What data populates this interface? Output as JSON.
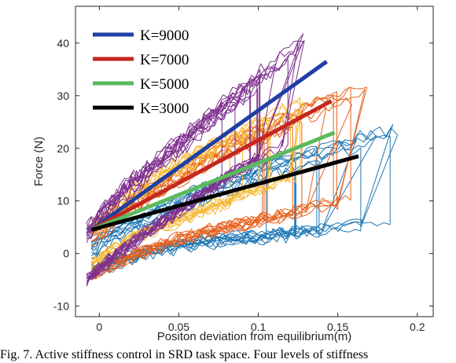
{
  "chart_data": {
    "type": "line",
    "xlabel": "Positon deviation from equilibrium(m)",
    "ylabel": "Force (N)",
    "xlim": [
      -0.015,
      0.21
    ],
    "ylim": [
      -12,
      47
    ],
    "xticks": [
      0,
      0.05,
      0.1,
      0.15,
      0.2
    ],
    "xtick_labels": [
      "0",
      "0.05",
      "0.1",
      "0.15",
      "0.2"
    ],
    "yticks": [
      -10,
      0,
      10,
      20,
      30,
      40
    ],
    "ytick_labels": [
      "-10",
      "0",
      "10",
      "20",
      "30",
      "40"
    ],
    "grid": false,
    "legend_position": "top-left",
    "fit_lines": [
      {
        "name": "K=9000",
        "color": "#1f3fa6",
        "x": [
          -0.005,
          0.143
        ],
        "y": [
          4.5,
          36.5
        ]
      },
      {
        "name": "K=7000",
        "color": "#c4281e",
        "x": [
          -0.005,
          0.146
        ],
        "y": [
          4.5,
          29.0
        ]
      },
      {
        "name": "K=5000",
        "color": "#5cba5c",
        "x": [
          -0.005,
          0.148
        ],
        "y": [
          4.5,
          23.0
        ]
      },
      {
        "name": "K=3000",
        "color": "#000000",
        "x": [
          -0.005,
          0.163
        ],
        "y": [
          4.5,
          18.5
        ]
      }
    ],
    "trial_groups": [
      {
        "color": "#1f77b4",
        "count": 12,
        "x_min": -0.005,
        "x_max": 0.195,
        "lower_y": [
          -3,
          0,
          2,
          3,
          4,
          5,
          6
        ],
        "upper_y": [
          1,
          6,
          11,
          15,
          18,
          21,
          23
        ],
        "jump_x": [
          0.14,
          0.165,
          0.19
        ]
      },
      {
        "color": "#e8601c",
        "count": 12,
        "x_min": -0.005,
        "x_max": 0.17,
        "lower_y": [
          -4,
          0,
          3,
          5,
          7,
          9,
          10
        ],
        "upper_y": [
          3,
          10,
          15,
          20,
          24,
          28,
          31
        ],
        "jump_x": [
          0.13,
          0.15,
          0.165
        ]
      },
      {
        "color": "#f5b833",
        "count": 10,
        "x_min": -0.005,
        "x_max": 0.15,
        "lower_y": [
          -2,
          3,
          6,
          9,
          12,
          15,
          17
        ],
        "upper_y": [
          4,
          11,
          16,
          20,
          24,
          28,
          32
        ],
        "jump_x": [
          0.12,
          0.135
        ]
      },
      {
        "color": "#7e2f8e",
        "count": 14,
        "x_min": -0.008,
        "x_max": 0.135,
        "lower_y": [
          -5,
          1,
          6,
          11,
          16,
          20,
          24
        ],
        "upper_y": [
          4,
          12,
          18,
          24,
          30,
          36,
          42
        ],
        "jump_x": [
          0.1,
          0.115,
          0.13
        ]
      }
    ]
  },
  "caption": "Fig. 7.  Active stiffness control in SRD task space. Four levels of stiffness"
}
